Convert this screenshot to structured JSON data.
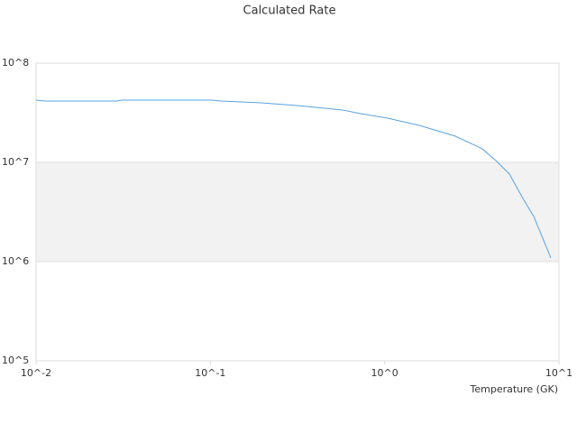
{
  "chart_data": {
    "type": "line",
    "title": "Calculated Rate",
    "x_label": "Temperature (GK)",
    "x_log": true,
    "y_log": true,
    "xlim": [
      0.01,
      10
    ],
    "ylim": [
      100000,
      100000000
    ],
    "xticks": [
      {
        "value": 0.01,
        "label": "10^-2"
      },
      {
        "value": 0.1,
        "label": "10^-1"
      },
      {
        "value": 1,
        "label": "10^0"
      },
      {
        "value": 10,
        "label": "10^1"
      }
    ],
    "yticks": [
      {
        "value": 100000,
        "label": "10^5"
      },
      {
        "value": 1000000,
        "label": "10^6"
      },
      {
        "value": 10000000,
        "label": "10^7"
      },
      {
        "value": 100000000,
        "label": "10^8"
      }
    ],
    "series": [
      {
        "color": "#5aa2e0",
        "x": [
          0.01,
          0.0113,
          0.0292,
          0.031,
          0.102,
          0.115,
          0.196,
          0.316,
          0.574,
          0.728,
          1.04,
          1.58,
          2.54,
          3.63,
          4.35,
          5.2,
          6.21,
          7.17,
          8.98
        ],
        "values": [
          42400000,
          41500000,
          41500000,
          42400000,
          42400000,
          41500000,
          39800000,
          37400000,
          33700000,
          31000000,
          27900000,
          23600000,
          18400000,
          13700000,
          10400000,
          7620000,
          4330000,
          2850000,
          1090000
        ]
      }
    ]
  }
}
